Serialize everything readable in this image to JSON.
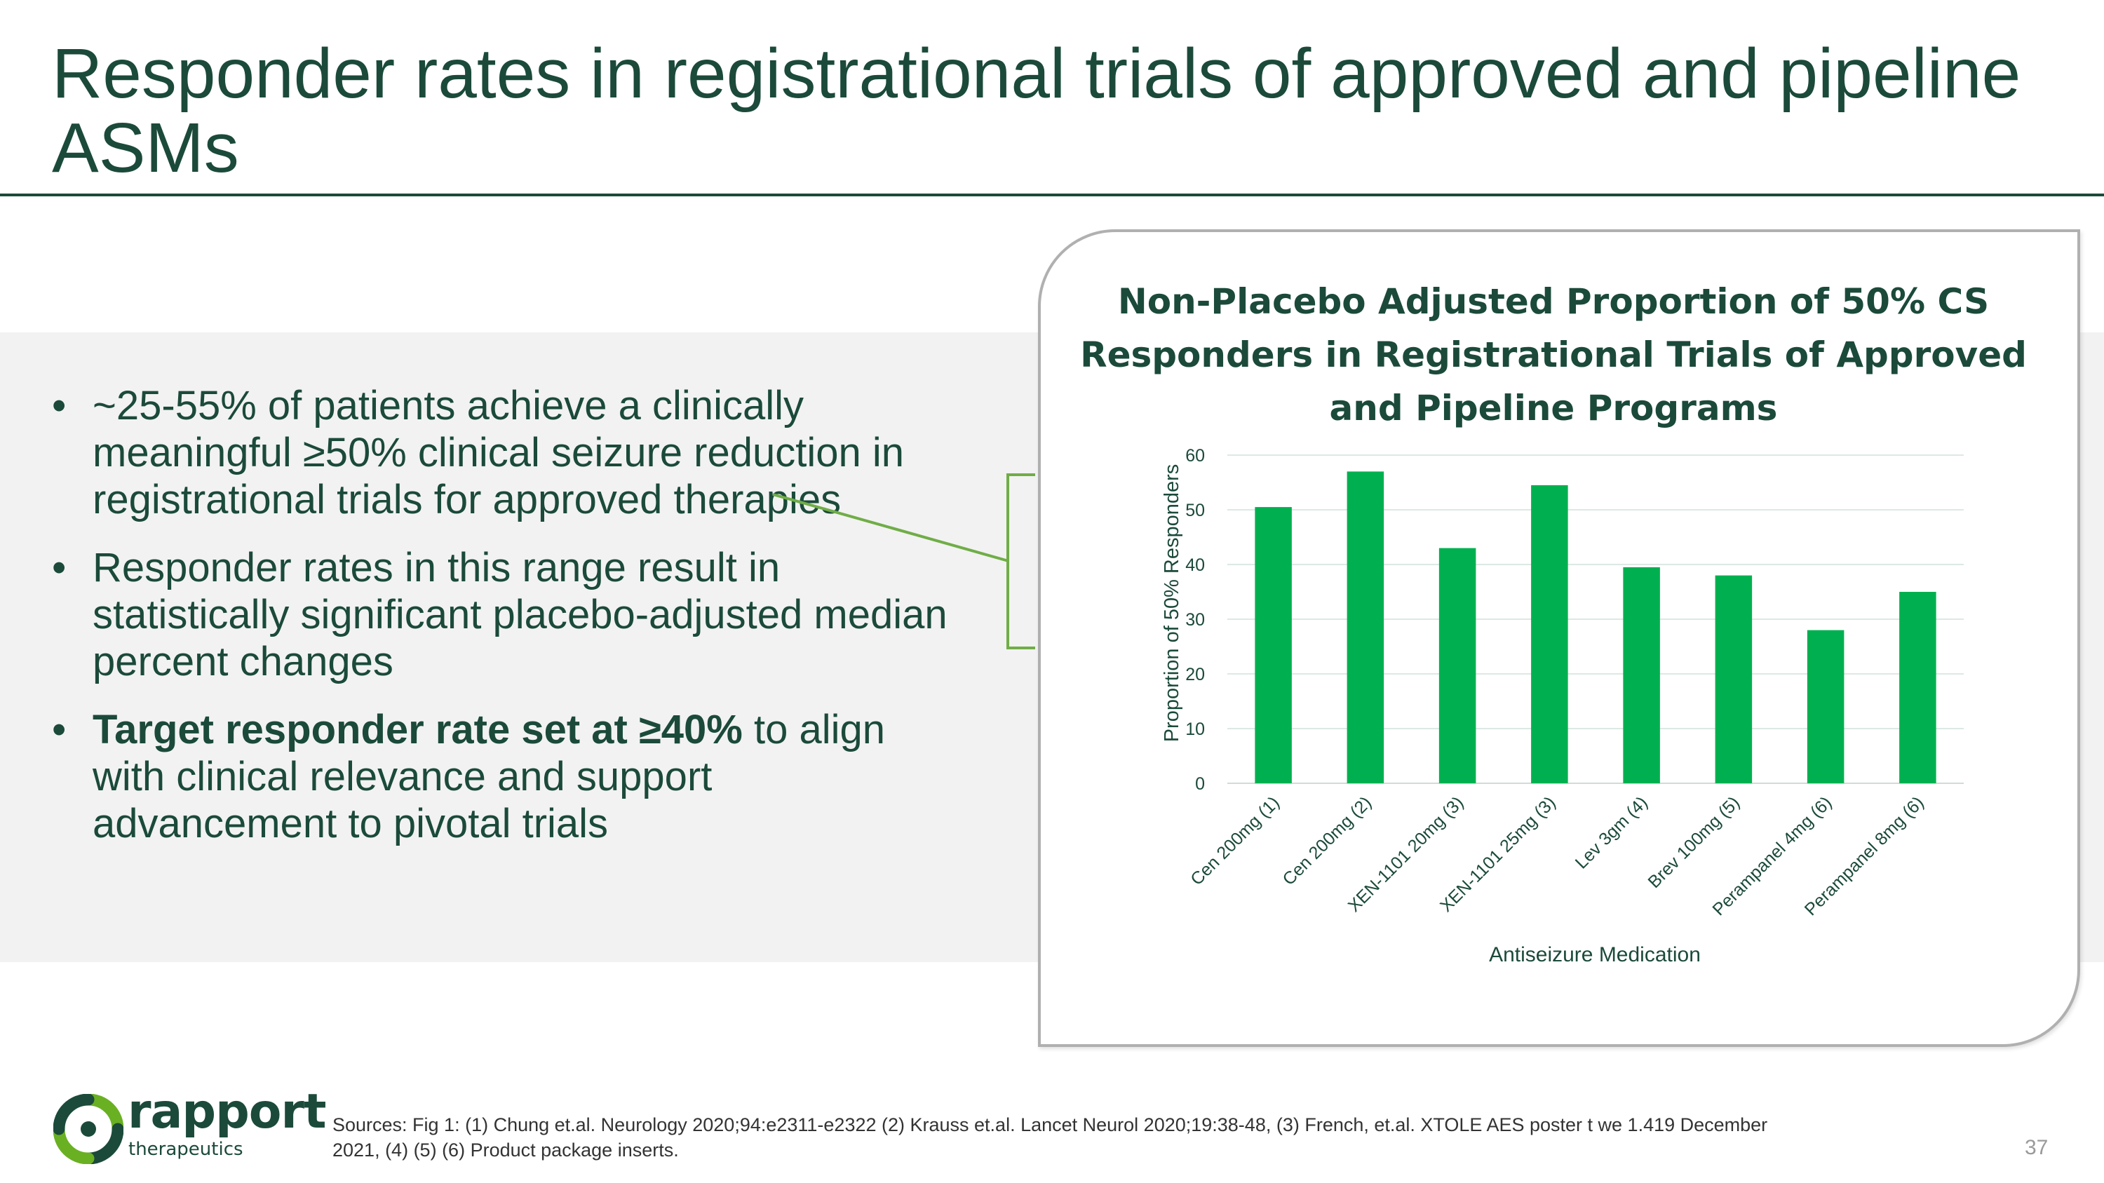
{
  "slide": {
    "title": "Responder rates in registrational trials of approved and pipeline ASMs",
    "bullets": [
      {
        "text": "~25-55% of patients achieve a clinically meaningful ≥50% clinical seizure reduction in registrational trials for approved therapies"
      },
      {
        "text": "Responder rates in this range result in statistically significant placebo-adjusted median percent changes"
      },
      {
        "bold": "Target responder rate set at ≥40%",
        "text": " to align with clinical relevance and support advancement to pivotal trials"
      }
    ],
    "bullet_glyph": "•",
    "sources": "Sources: Fig 1: (1) Chung et.al. Neurology 2020;94:e2311-e2322 (2) Krauss et.al. Lancet Neurol 2020;19:38-48, (3) French, et.al. XTOLE AES poster t we 1.419 December 2021, (4) (5) (6) Product package inserts.",
    "page_number": "37"
  },
  "logo": {
    "name": "rapport",
    "tagline": "therapeutics"
  },
  "colors": {
    "brand_dark_green": "#1b4a3a",
    "bar_green": "#00b050",
    "connector_green": "#70ad47",
    "band_gray": "#f2f2f2"
  },
  "chart_data": {
    "type": "bar",
    "title": "Non-Placebo Adjusted Proportion of 50% CS Responders in Registrational Trials of Approved and Pipeline Programs",
    "xlabel": "Antiseizure Medication",
    "ylabel": "Proportion of 50% Responders",
    "categories": [
      "Cen 200mg (1)",
      "Cen 200mg (2)",
      "XEN-1101 20mg (3)",
      "XEN-1101 25mg (3)",
      "Lev 3gm (4)",
      "Brev 100mg (5)",
      "Perampanel 4mg (6)",
      "Perampanel 8mg (6)"
    ],
    "values": [
      50.5,
      57,
      43,
      54.5,
      39.5,
      38,
      28,
      35
    ],
    "ylim": [
      0,
      60
    ],
    "yticks": [
      0,
      10,
      20,
      30,
      40,
      50,
      60
    ],
    "grid": true,
    "legend": "none"
  }
}
